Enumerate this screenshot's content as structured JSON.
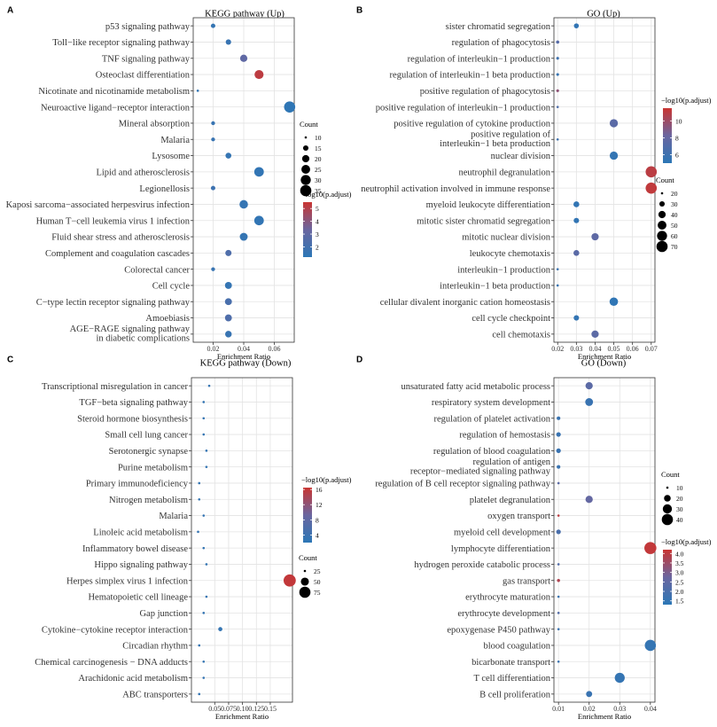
{
  "figure": {
    "colors": {
      "low": "#2c77b6",
      "mid": "#6a66a0",
      "high": "#c93532",
      "grid": "#e3e3e3",
      "frame": "#333333"
    }
  },
  "chart_data": [
    {
      "id": "A",
      "panel_label": "A",
      "type": "scatter",
      "title": "KEGG pathway (Up)",
      "xlabel": "Enrichment Ratio",
      "xlim": [
        0.007,
        0.073
      ],
      "xticks": [
        0.02,
        0.04,
        0.06
      ],
      "xtick_labels": [
        "0.02",
        "0.04",
        "0.06"
      ],
      "count_legend": {
        "title": "Count",
        "values": [
          10,
          15,
          20,
          25,
          30,
          35
        ],
        "labels": [
          "10",
          "15",
          "20",
          "25",
          "30",
          "35"
        ]
      },
      "color_legend": {
        "title": "−log10(p.adjust)",
        "range": [
          1.2,
          5.5
        ],
        "ticks": [
          2,
          3,
          4,
          5
        ],
        "tick_labels": [
          "2",
          "3",
          "4",
          "5"
        ]
      },
      "categories": [
        "p53 signaling pathway",
        "Toll−like receptor signaling pathway",
        "TNF signaling pathway",
        "Osteoclast differentiation",
        "Nicotinate and nicotinamide metabolism",
        "Neuroactive ligand−receptor interaction",
        "Mineral absorption",
        "Malaria",
        "Lysosome",
        "Lipid and atherosclerosis",
        "Legionellosis",
        "Kaposi sarcoma−associated herpesvirus infection",
        "Human T−cell leukemia virus 1 infection",
        "Fluid shear stress and atherosclerosis",
        "Complement and coagulation cascades",
        "Colorectal cancer",
        "Cell cycle",
        "C−type lectin receptor signaling pathway",
        "Amoebiasis",
        "AGE−RAGE signaling pathway\nin diabetic complications"
      ],
      "x": [
        0.02,
        0.03,
        0.04,
        0.05,
        0.01,
        0.07,
        0.02,
        0.02,
        0.03,
        0.05,
        0.02,
        0.04,
        0.05,
        0.04,
        0.03,
        0.02,
        0.03,
        0.03,
        0.03,
        0.03
      ],
      "count": [
        13,
        15,
        20,
        26,
        9,
        35,
        12,
        12,
        16,
        28,
        13,
        24,
        28,
        22,
        17,
        12,
        19,
        19,
        19,
        18
      ],
      "neglog10_padj": [
        1.5,
        1.6,
        3.0,
        5.2,
        1.4,
        1.3,
        1.6,
        1.6,
        1.5,
        1.4,
        1.8,
        1.5,
        1.4,
        1.5,
        2.4,
        1.6,
        1.5,
        2.2,
        2.4,
        1.6
      ]
    },
    {
      "id": "B",
      "panel_label": "B",
      "type": "scatter",
      "title": "GO (Up)",
      "xlabel": "Enrichment Ratio",
      "xlim": [
        0.018,
        0.072
      ],
      "xticks": [
        0.02,
        0.03,
        0.04,
        0.05,
        0.06,
        0.07
      ],
      "xtick_labels": [
        "0.02",
        "0.03",
        "0.04",
        "0.05",
        "0.06",
        "0.07"
      ],
      "count_legend": {
        "title": "Count",
        "values": [
          20,
          30,
          40,
          50,
          60,
          70
        ],
        "labels": [
          "20",
          "30",
          "40",
          "50",
          "60",
          "70"
        ]
      },
      "color_legend": {
        "title": "−log10(p.adjust)",
        "range": [
          5.0,
          11.5
        ],
        "ticks": [
          6,
          8,
          10
        ],
        "tick_labels": [
          "6",
          "8",
          "10"
        ]
      },
      "categories": [
        "sister chromatid segregation",
        "regulation of phagocytosis",
        "regulation of interleukin−1 production",
        "regulation of interleukin−1 beta production",
        "positive regulation of phagocytosis",
        "positive regulation of interleukin−1 production",
        "positive regulation of cytokine production",
        "positive regulation of\ninterleukin−1 beta production",
        "nuclear division",
        "neutrophil degranulation",
        "neutrophil activation involved in immune response",
        "myeloid leukocyte differentiation",
        "mitotic sister chromatid segregation",
        "mitotic nuclear division",
        "leukocyte chemotaxis",
        "interleukin−1 production",
        "interleukin−1 beta production",
        "cellular divalent inorganic cation homeostasis",
        "cell cycle checkpoint",
        "cell chemotaxis"
      ],
      "x": [
        0.03,
        0.02,
        0.02,
        0.02,
        0.02,
        0.02,
        0.05,
        0.02,
        0.05,
        0.07,
        0.07,
        0.03,
        0.03,
        0.04,
        0.03,
        0.02,
        0.02,
        0.05,
        0.03,
        0.04
      ],
      "count": [
        28,
        22,
        21,
        21,
        21,
        18,
        46,
        15,
        46,
        70,
        70,
        32,
        30,
        40,
        32,
        20,
        20,
        48,
        30,
        40
      ],
      "neglog10_padj": [
        5.3,
        7.2,
        6.0,
        5.6,
        9.5,
        6.8,
        7.4,
        6.0,
        5.4,
        11.0,
        11.2,
        5.3,
        5.3,
        7.6,
        7.4,
        5.8,
        5.6,
        5.2,
        5.4,
        7.5
      ]
    },
    {
      "id": "C",
      "panel_label": "C",
      "type": "scatter",
      "title": "KEGG pathway (Down)",
      "xlabel": "Enrichment Ratio",
      "xlim": [
        0.008,
        0.19
      ],
      "xticks": [
        0.05,
        0.075,
        0.1,
        0.125,
        0.15
      ],
      "xtick_labels": [
        "0.05",
        "0.075",
        "0.10",
        "0.125",
        "0.15"
      ],
      "count_legend": {
        "title": "Count",
        "values": [
          25,
          50,
          75
        ],
        "labels": [
          "25",
          "50",
          "75"
        ]
      },
      "color_legend": {
        "title": "−log10(p.adjust)",
        "range": [
          2.0,
          16.5
        ],
        "ticks": [
          4,
          8,
          12,
          16
        ],
        "tick_labels": [
          "4",
          "8",
          "12",
          "16"
        ]
      },
      "categories": [
        "Transcriptional misregulation in cancer",
        "TGF−beta signaling pathway",
        "Steroid hormone biosynthesis",
        "Small cell lung cancer",
        "Serotonergic synapse",
        "Purine metabolism",
        "Primary immunodeficiency",
        "Nitrogen metabolism",
        "Malaria",
        "Linoleic acid metabolism",
        "Inflammatory bowel disease",
        "Hippo signaling pathway",
        "Herpes simplex virus 1 infection",
        "Hematopoietic cell lineage",
        "Gap junction",
        "Cytokine−cytokine receptor interaction",
        "Circadian rhythm",
        "Chemical carcinogenesis − DNA adducts",
        "Arachidonic acid metabolism",
        "ABC transporters"
      ],
      "x": [
        0.04,
        0.03,
        0.03,
        0.03,
        0.035,
        0.035,
        0.022,
        0.022,
        0.03,
        0.02,
        0.03,
        0.035,
        0.185,
        0.035,
        0.03,
        0.06,
        0.022,
        0.03,
        0.03,
        0.022
      ],
      "count": [
        22,
        15,
        14,
        14,
        16,
        18,
        9,
        8,
        14,
        6,
        14,
        18,
        85,
        16,
        15,
        30,
        7,
        14,
        14,
        10
      ],
      "neglog10_padj": [
        3.0,
        3.0,
        3.0,
        3.0,
        3.0,
        3.0,
        3.0,
        3.0,
        3.0,
        3.0,
        3.0,
        3.0,
        16.0,
        3.0,
        3.0,
        3.0,
        3.0,
        3.0,
        3.0,
        3.0
      ]
    },
    {
      "id": "D",
      "panel_label": "D",
      "type": "scatter",
      "title": "GO (Down)",
      "xlabel": "Enrichment Ratio",
      "xlim": [
        0.0085,
        0.0415
      ],
      "xticks": [
        0.01,
        0.02,
        0.03,
        0.04
      ],
      "xtick_labels": [
        "0.01",
        "0.02",
        "0.03",
        "0.04"
      ],
      "count_legend": {
        "title": "Count",
        "values": [
          10,
          20,
          30,
          40
        ],
        "labels": [
          "10",
          "20",
          "30",
          "40"
        ]
      },
      "color_legend": {
        "title": "−log10(p.adjust)",
        "range": [
          1.3,
          4.2
        ],
        "ticks": [
          1.5,
          2.0,
          2.5,
          3.0,
          3.5,
          4.0
        ],
        "tick_labels": [
          "1.5",
          "2.0",
          "2.5",
          "3.0",
          "3.5",
          "4.0"
        ]
      },
      "categories": [
        "unsaturated fatty acid metabolic process",
        "respiratory system development",
        "regulation of platelet activation",
        "regulation of hemostasis",
        "regulation of blood coagulation",
        "regulation of antigen\nreceptor−mediated signaling pathway",
        "regulation of B cell receptor signaling pathway",
        "platelet degranulation",
        "oxygen transport",
        "myeloid cell development",
        "lymphocyte differentiation",
        "hydrogen peroxide catabolic process",
        "gas transport",
        "erythrocyte maturation",
        "erythrocyte development",
        "epoxygenase P450 pathway",
        "blood coagulation",
        "bicarbonate transport",
        "T cell differentiation",
        "B cell proliferation"
      ],
      "x": [
        0.02,
        0.02,
        0.01,
        0.01,
        0.01,
        0.01,
        0.01,
        0.02,
        0.01,
        0.01,
        0.04,
        0.01,
        0.01,
        0.01,
        0.01,
        0.01,
        0.04,
        0.01,
        0.03,
        0.02
      ],
      "count": [
        22,
        24,
        12,
        14,
        14,
        12,
        10,
        22,
        10,
        14,
        45,
        10,
        11,
        8,
        10,
        9,
        40,
        10,
        34,
        18
      ],
      "neglog10_padj": [
        2.4,
        1.6,
        1.6,
        1.6,
        1.6,
        1.6,
        2.4,
        2.6,
        4.0,
        2.0,
        4.1,
        2.2,
        3.8,
        1.6,
        2.2,
        1.6,
        1.5,
        1.6,
        1.5,
        1.6
      ]
    }
  ]
}
